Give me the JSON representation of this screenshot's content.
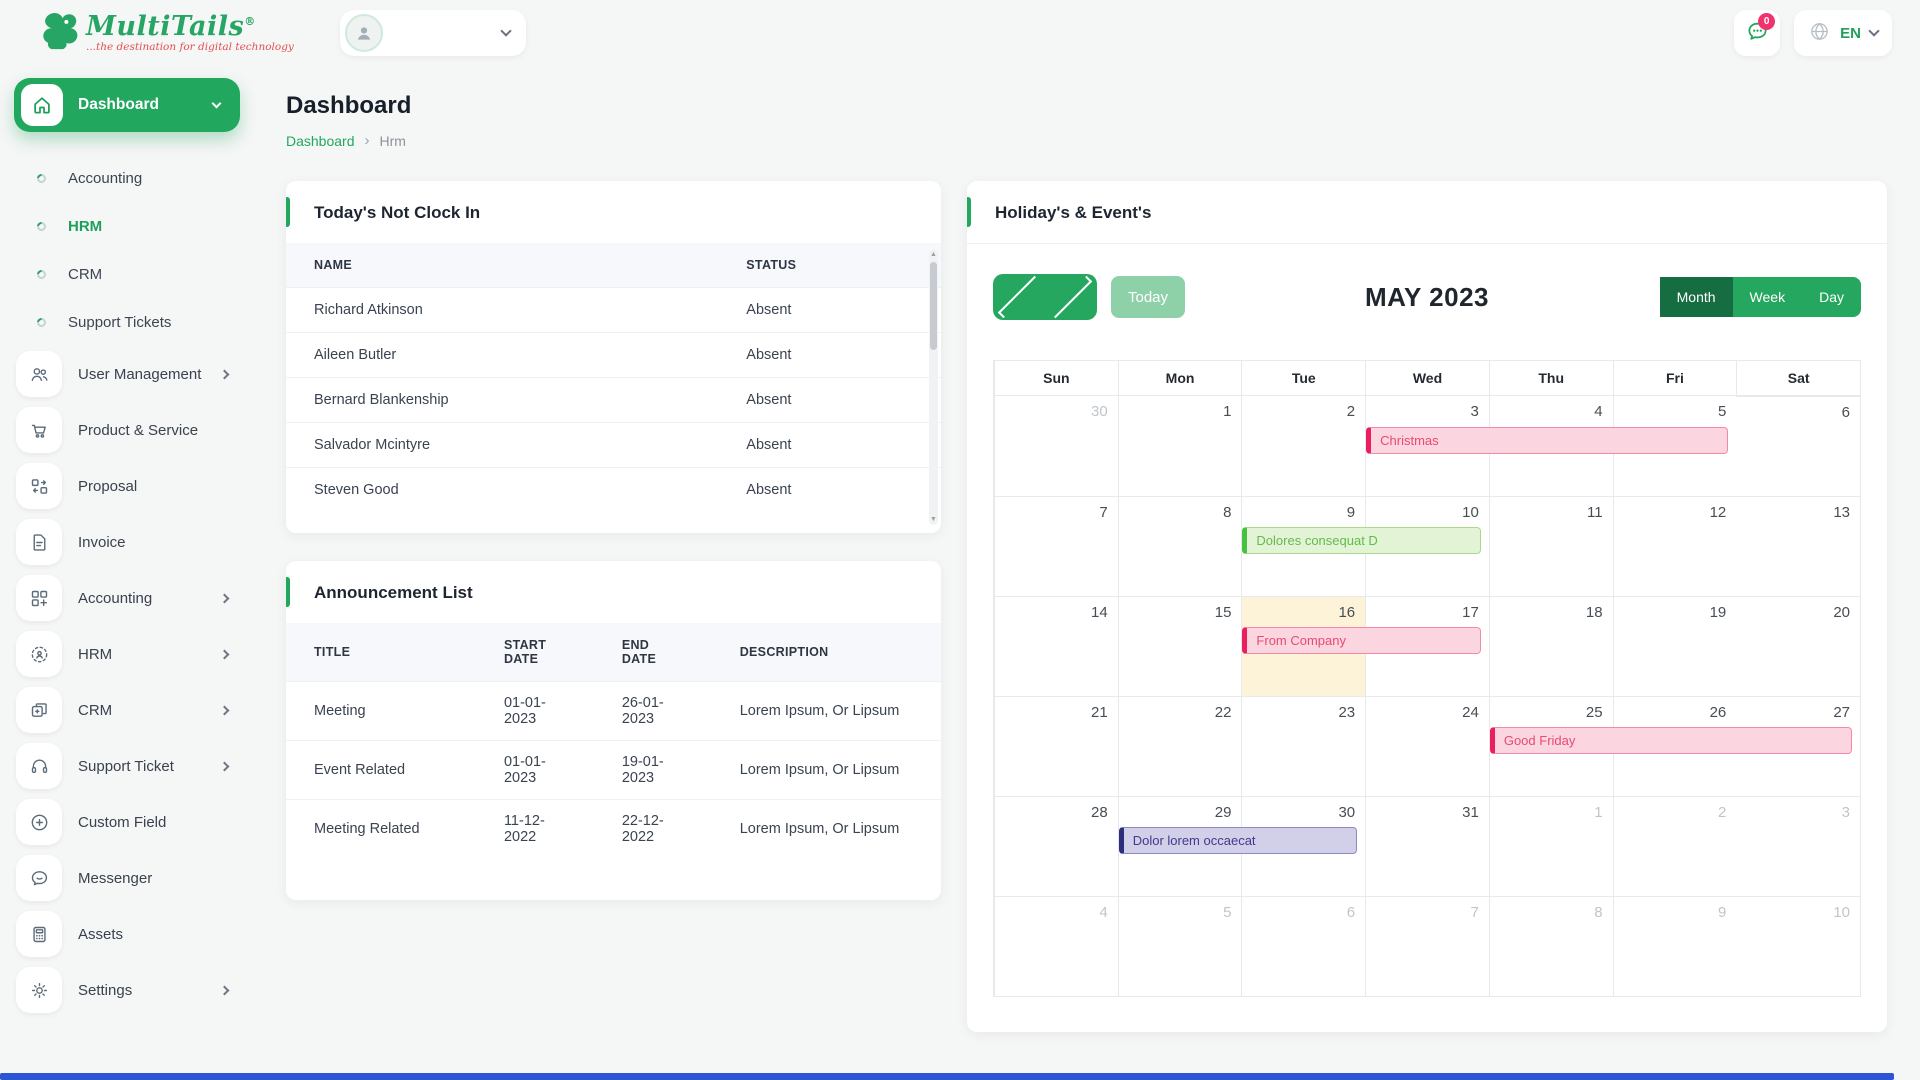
{
  "header": {
    "logo": {
      "brand": "MultiTails",
      "reg_mark": "®",
      "tagline": "...the destination for digital technology"
    },
    "chat_badge": "0",
    "language": {
      "code": "EN"
    }
  },
  "sidebar": {
    "dashboard_label": "Dashboard",
    "sub_items": [
      {
        "label": "Accounting"
      },
      {
        "label": "HRM",
        "active": true
      },
      {
        "label": "CRM"
      },
      {
        "label": "Support Tickets"
      }
    ],
    "items": [
      {
        "label": "User Management",
        "icon": "users-icon",
        "chevron": true
      },
      {
        "label": "Product & Service",
        "icon": "cart-icon"
      },
      {
        "label": "Proposal",
        "icon": "proposal-icon"
      },
      {
        "label": "Invoice",
        "icon": "invoice-icon"
      },
      {
        "label": "Accounting",
        "icon": "accounting-icon",
        "chevron": true
      },
      {
        "label": "HRM",
        "icon": "hrm-icon",
        "chevron": true
      },
      {
        "label": "CRM",
        "icon": "crm-icon",
        "chevron": true
      },
      {
        "label": "Support Ticket",
        "icon": "headset-icon",
        "chevron": true
      },
      {
        "label": "Custom Field",
        "icon": "plus-circle-icon"
      },
      {
        "label": "Messenger",
        "icon": "messenger-icon"
      },
      {
        "label": "Assets",
        "icon": "calculator-icon"
      },
      {
        "label": "Settings",
        "icon": "gear-icon",
        "chevron": true
      }
    ]
  },
  "page": {
    "title": "Dashboard",
    "breadcrumb": {
      "home": "Dashboard",
      "separator": "›",
      "current": "Hrm"
    }
  },
  "clockin": {
    "title": "Today's Not Clock In",
    "columns": [
      "NAME",
      "STATUS"
    ],
    "rows": [
      {
        "name": "Richard Atkinson",
        "status": "Absent"
      },
      {
        "name": "Aileen Butler",
        "status": "Absent"
      },
      {
        "name": "Bernard Blankenship",
        "status": "Absent"
      },
      {
        "name": "Salvador Mcintyre",
        "status": "Absent"
      },
      {
        "name": "Steven Good",
        "status": "Absent"
      }
    ]
  },
  "announcements": {
    "title": "Announcement List",
    "columns": [
      "TITLE",
      "START DATE",
      "END DATE",
      "DESCRIPTION"
    ],
    "rows": [
      {
        "title": "Meeting",
        "start": "01-01-2023",
        "end": "26-01-2023",
        "description": "Lorem Ipsum, Or Lipsum"
      },
      {
        "title": "Event Related",
        "start": "01-01-2023",
        "end": "19-01-2023",
        "description": "Lorem Ipsum, Or Lipsum"
      },
      {
        "title": "Meeting Related",
        "start": "11-12-2022",
        "end": "22-12-2022",
        "description": "Lorem Ipsum, Or Lipsum"
      }
    ]
  },
  "calendar": {
    "card_title": "Holiday's & Event's",
    "toolbar": {
      "today_label": "Today",
      "month_title": "MAY 2023",
      "views": [
        {
          "label": "Month",
          "active": true
        },
        {
          "label": "Week"
        },
        {
          "label": "Day"
        }
      ]
    },
    "day_headers": [
      "Sun",
      "Mon",
      "Tue",
      "Wed",
      "Thu",
      "Fri",
      "Sat"
    ],
    "cells": [
      {
        "d": "30",
        "muted": true
      },
      {
        "d": "1"
      },
      {
        "d": "2"
      },
      {
        "d": "3"
      },
      {
        "d": "4"
      },
      {
        "d": "5"
      },
      {
        "d": "6"
      },
      {
        "d": "7"
      },
      {
        "d": "8"
      },
      {
        "d": "9"
      },
      {
        "d": "10"
      },
      {
        "d": "11"
      },
      {
        "d": "12"
      },
      {
        "d": "13"
      },
      {
        "d": "14"
      },
      {
        "d": "15"
      },
      {
        "d": "16",
        "today": true
      },
      {
        "d": "17"
      },
      {
        "d": "18"
      },
      {
        "d": "19"
      },
      {
        "d": "20"
      },
      {
        "d": "21"
      },
      {
        "d": "22"
      },
      {
        "d": "23"
      },
      {
        "d": "24"
      },
      {
        "d": "25"
      },
      {
        "d": "26"
      },
      {
        "d": "27"
      },
      {
        "d": "28"
      },
      {
        "d": "29"
      },
      {
        "d": "30"
      },
      {
        "d": "31"
      },
      {
        "d": "1",
        "muted": true
      },
      {
        "d": "2",
        "muted": true
      },
      {
        "d": "3",
        "muted": true
      },
      {
        "d": "4",
        "muted": true
      },
      {
        "d": "5",
        "muted": true
      },
      {
        "d": "6",
        "muted": true
      },
      {
        "d": "7",
        "muted": true
      },
      {
        "d": "8",
        "muted": true
      },
      {
        "d": "9",
        "muted": true
      },
      {
        "d": "10",
        "muted": true
      }
    ],
    "events": [
      {
        "label": "Christmas",
        "week": 0,
        "start": 3,
        "span": 3,
        "color": "pink"
      },
      {
        "label": "Dolores consequat D",
        "week": 1,
        "start": 2,
        "span": 2,
        "color": "green"
      },
      {
        "label": "From Company",
        "week": 2,
        "start": 2,
        "span": 2,
        "color": "pink"
      },
      {
        "label": "Good Friday",
        "week": 3,
        "start": 4,
        "span": 3,
        "color": "pink"
      },
      {
        "label": "Dolor lorem occaecat",
        "week": 4,
        "start": 1,
        "span": 2,
        "color": "purple"
      }
    ],
    "colors": {
      "accent_green": "#22a85e",
      "active_view_green": "#156d41",
      "today_cell": "#fcf3d8",
      "event_pink": "#eb1e5f",
      "event_green": "#46c03e",
      "event_purple": "#2b2d7e"
    }
  }
}
